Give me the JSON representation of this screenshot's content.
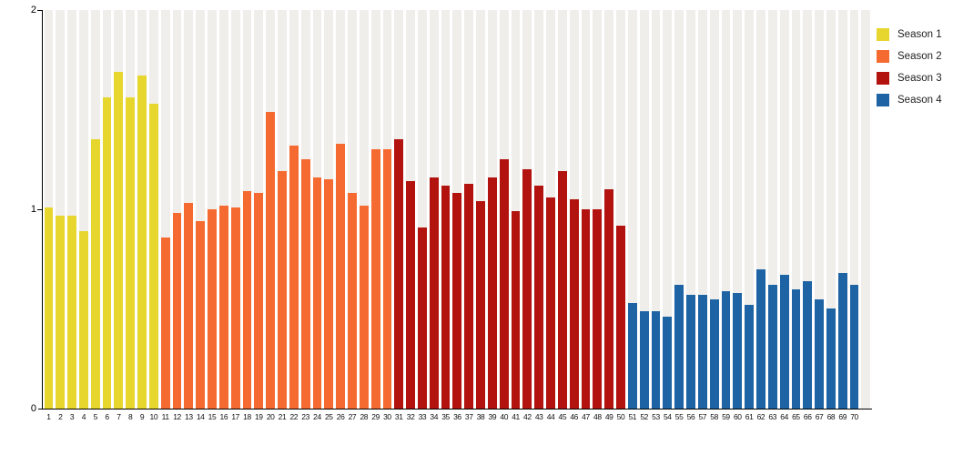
{
  "chart_data": {
    "type": "bar",
    "title": "",
    "xlabel": "",
    "ylabel": "",
    "ylim": [
      0,
      2
    ],
    "yticks_top_to_bottom": [
      "2",
      "1",
      "0"
    ],
    "grid": "vertical striped slot background, alternating light gray on white",
    "legend_position": "top-right",
    "categories": [
      "1",
      "2",
      "3",
      "4",
      "5",
      "6",
      "7",
      "8",
      "9",
      "10",
      "11",
      "12",
      "13",
      "14",
      "15",
      "16",
      "17",
      "18",
      "19",
      "20",
      "21",
      "22",
      "23",
      "24",
      "25",
      "26",
      "27",
      "28",
      "29",
      "30",
      "31",
      "32",
      "33",
      "34",
      "35",
      "36",
      "37",
      "38",
      "39",
      "40",
      "41",
      "42",
      "43",
      "44",
      "45",
      "46",
      "47",
      "48",
      "49",
      "50",
      "51",
      "52",
      "53",
      "54",
      "55",
      "56",
      "57",
      "58",
      "59",
      "60",
      "61",
      "62",
      "63",
      "64",
      "65",
      "66",
      "67",
      "68",
      "69",
      "70"
    ],
    "series": [
      {
        "name": "Season 1",
        "color": "#E6D62E",
        "from": 1,
        "to": 10,
        "values": [
          1.01,
          0.97,
          0.97,
          0.89,
          1.35,
          1.56,
          1.69,
          1.56,
          1.67,
          1.53
        ]
      },
      {
        "name": "Season 2",
        "color": "#F56A30",
        "from": 11,
        "to": 30,
        "values": [
          0.86,
          0.98,
          1.03,
          0.94,
          1.0,
          1.02,
          1.01,
          1.09,
          1.08,
          1.49,
          1.19,
          1.32,
          1.25,
          1.16,
          1.15,
          1.33,
          1.08,
          1.02,
          1.3,
          1.3
        ]
      },
      {
        "name": "Season 3",
        "color": "#B2130F",
        "from": 31,
        "to": 50,
        "values": [
          1.35,
          1.14,
          0.91,
          1.16,
          1.12,
          1.08,
          1.13,
          1.04,
          1.16,
          1.25,
          0.99,
          1.2,
          1.12,
          1.06,
          1.19,
          1.05,
          1.0,
          1.0,
          1.1,
          0.92
        ]
      },
      {
        "name": "Season 4",
        "color": "#1E63A4",
        "from": 51,
        "to": 70,
        "values": [
          0.53,
          0.49,
          0.49,
          0.46,
          0.62,
          0.57,
          0.57,
          0.55,
          0.59,
          0.58,
          0.52,
          0.7,
          0.62,
          0.67,
          0.6,
          0.64,
          0.55,
          0.5,
          0.68,
          0.62
        ]
      }
    ]
  },
  "colors": {
    "axis": "#000000",
    "stripe_background": "#EFEEEB",
    "page_background": "#FFFFFF"
  }
}
